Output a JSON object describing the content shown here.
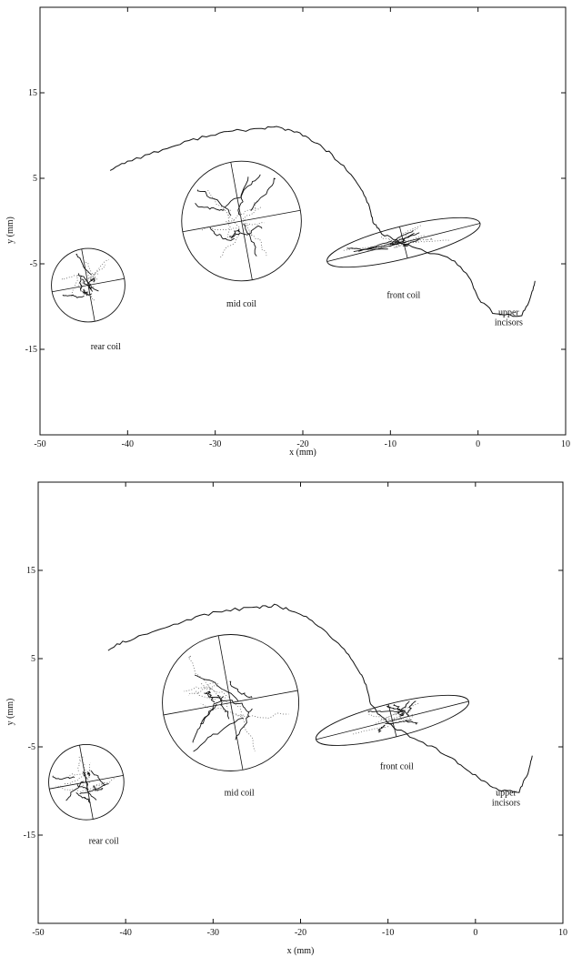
{
  "chart_data": [
    {
      "type": "line",
      "title": "",
      "xlabel": "x (mm)",
      "ylabel": "y (mm)",
      "xlim": [
        -50,
        10
      ],
      "ylim": [
        -25,
        25
      ],
      "x_ticks": [
        -50,
        -40,
        -30,
        -20,
        -10,
        0,
        10
      ],
      "y_ticks": [
        15,
        5,
        -5,
        -15
      ],
      "grid": false,
      "legend": "none",
      "palate": [
        [
          -42,
          6
        ],
        [
          -40,
          7
        ],
        [
          -37,
          8
        ],
        [
          -34,
          9
        ],
        [
          -31,
          10
        ],
        [
          -28,
          10.5
        ],
        [
          -25,
          10.8
        ],
        [
          -23,
          11
        ],
        [
          -21,
          10.5
        ],
        [
          -19,
          9.5
        ],
        [
          -17,
          8
        ],
        [
          -15,
          6
        ],
        [
          -13.5,
          4
        ],
        [
          -12.5,
          2
        ],
        [
          -12,
          0
        ],
        [
          -11,
          -1.5
        ],
        [
          -9,
          -2.5
        ],
        [
          -6,
          -3.5
        ],
        [
          -3,
          -4.5
        ],
        [
          -1,
          -6.5
        ],
        [
          0,
          -9
        ],
        [
          2,
          -11
        ],
        [
          5,
          -11
        ],
        [
          6,
          -9
        ],
        [
          6.5,
          -7
        ]
      ],
      "coils": [
        {
          "label": "rear coil",
          "center": [
            -44.5,
            -7.5
          ],
          "rx": 4.3,
          "ry": 4.3,
          "angle_deg": 0,
          "label_pos": [
            -42.5,
            -15
          ]
        },
        {
          "label": "mid coil",
          "center": [
            -27,
            0
          ],
          "rx": 7,
          "ry": 7,
          "angle_deg": 0,
          "label_pos": [
            -27,
            -10
          ]
        },
        {
          "label": "front coil",
          "center": [
            -8.5,
            -2.5
          ],
          "rx": 9,
          "ry": 1.9,
          "angle_deg": -14,
          "label_pos": [
            -8.5,
            -9
          ]
        }
      ],
      "annotation": {
        "text_line1": "upper",
        "text_line2": "incisors",
        "pos": [
          3.5,
          -11
        ]
      }
    },
    {
      "type": "line",
      "title": "",
      "xlabel": "x (mm)",
      "ylabel": "y (mm)",
      "xlim": [
        -50,
        10
      ],
      "ylim": [
        -25,
        25
      ],
      "x_ticks": [
        -50,
        -40,
        -30,
        -20,
        -10,
        0,
        10
      ],
      "y_ticks": [
        15,
        5,
        -5,
        -15
      ],
      "grid": false,
      "legend": "none",
      "palate": [
        [
          -42,
          6
        ],
        [
          -40,
          7
        ],
        [
          -37,
          8
        ],
        [
          -34,
          9
        ],
        [
          -31,
          10
        ],
        [
          -28,
          10.5
        ],
        [
          -25,
          10.8
        ],
        [
          -23,
          11
        ],
        [
          -21,
          10.5
        ],
        [
          -19,
          9.5
        ],
        [
          -17,
          8
        ],
        [
          -15,
          6
        ],
        [
          -13.5,
          4
        ],
        [
          -12.5,
          2
        ],
        [
          -12,
          0
        ],
        [
          -11,
          -1.5
        ],
        [
          -9,
          -3
        ],
        [
          -6,
          -4.5
        ],
        [
          -3,
          -6
        ],
        [
          -1,
          -7.5
        ],
        [
          1,
          -9
        ],
        [
          3,
          -10
        ],
        [
          5,
          -10
        ],
        [
          6,
          -8
        ],
        [
          6.5,
          -6
        ]
      ],
      "coils": [
        {
          "label": "rear coil",
          "center": [
            -44.5,
            -9
          ],
          "rx": 4.3,
          "ry": 4.3,
          "angle_deg": 0,
          "label_pos": [
            -42.5,
            -16
          ]
        },
        {
          "label": "mid coil",
          "center": [
            -28,
            0
          ],
          "rx": 7.8,
          "ry": 7.8,
          "angle_deg": 0,
          "label_pos": [
            -27,
            -10.5
          ]
        },
        {
          "label": "front coil",
          "center": [
            -9.5,
            -2
          ],
          "rx": 9,
          "ry": 1.9,
          "angle_deg": -14,
          "label_pos": [
            -9,
            -7.5
          ]
        }
      ],
      "annotation": {
        "text_line1": "upper",
        "text_line2": "incisors",
        "pos": [
          3.5,
          -10.5
        ]
      }
    }
  ]
}
